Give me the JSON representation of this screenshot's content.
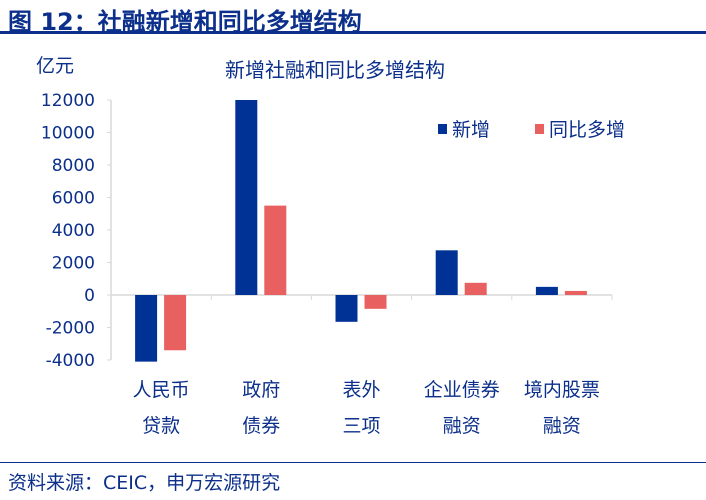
{
  "figure_title": "图 12：社融新增和同比多增结构",
  "source": "资料来源：CEIC，申万宏源研究",
  "chart_data": {
    "type": "bar",
    "title": "新增社融和同比多增结构",
    "ylabel": "亿元",
    "ylim": [
      -4000,
      12000
    ],
    "yticks": [
      -4000,
      -2000,
      0,
      2000,
      4000,
      6000,
      8000,
      10000,
      12000
    ],
    "categories": [
      [
        "人民币",
        "贷款"
      ],
      [
        "政府",
        "债券"
      ],
      [
        "表外",
        "三项"
      ],
      [
        "企业债券",
        "融资"
      ],
      [
        "境内股票",
        "融资"
      ]
    ],
    "series": [
      {
        "name": "新增",
        "color": "#003296",
        "values": [
          -4100,
          12000,
          -1650,
          2750,
          500
        ]
      },
      {
        "name": "同比多增",
        "color": "#e86060",
        "values": [
          -3400,
          5500,
          -850,
          750,
          250
        ]
      }
    ],
    "legend": "top-right",
    "grid": false
  }
}
